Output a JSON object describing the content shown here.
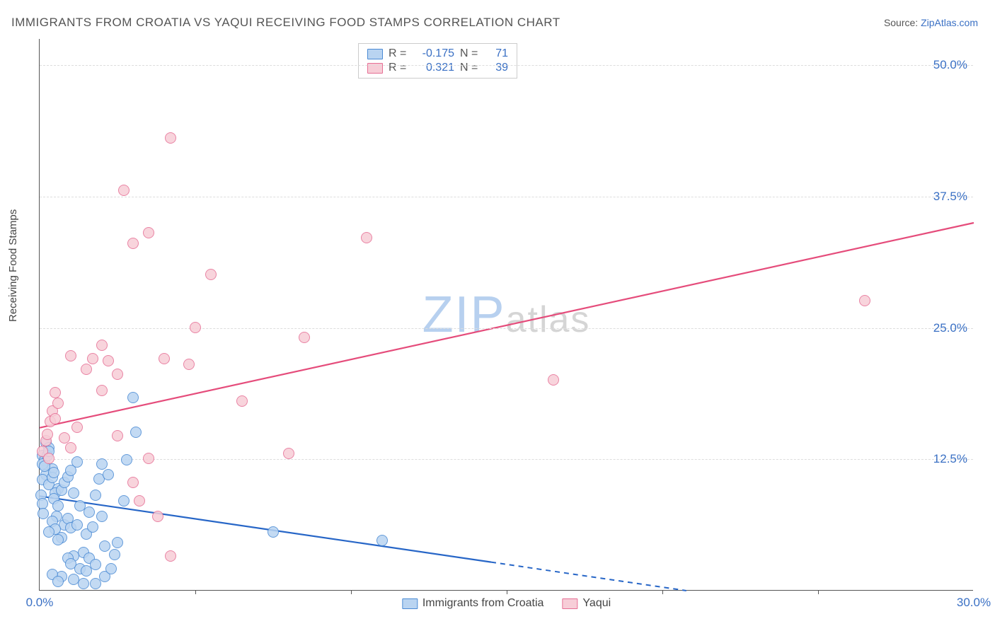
{
  "title": "IMMIGRANTS FROM CROATIA VS YAQUI RECEIVING FOOD STAMPS CORRELATION CHART",
  "source_prefix": "Source: ",
  "source_link": "ZipAtlas.com",
  "ylabel": "Receiving Food Stamps",
  "watermark_a": "ZIP",
  "watermark_b": "atlas",
  "watermark_color_a": "#b7d0ef",
  "watermark_color_b": "#d5d5d5",
  "plot": {
    "bg": "#ffffff",
    "axis_color": "#555555",
    "grid_color": "#dddddd",
    "xlim": [
      0,
      30
    ],
    "ylim": [
      0,
      52.5
    ],
    "xticks_major": [
      0,
      30
    ],
    "xticks_minor": [
      5,
      10,
      15,
      20,
      25
    ],
    "yticks": [
      12.5,
      25.0,
      37.5,
      50.0
    ],
    "xtick_labels": {
      "0": "0.0%",
      "30": "30.0%"
    },
    "ytick_labels": {
      "12.5": "12.5%",
      "25": "25.0%",
      "37.5": "37.5%",
      "50": "50.0%"
    }
  },
  "series": [
    {
      "name": "Immigrants from Croatia",
      "fill": "#b9d4f1",
      "stroke": "#4a8ad4",
      "line_color": "#2766c7",
      "R": "-0.175",
      "N": "71",
      "trend": {
        "y0": 9.0,
        "y_at_30": -4.0,
        "solid_until_x": 14.5
      },
      "points": [
        [
          0.1,
          12.8
        ],
        [
          0.15,
          12.3
        ],
        [
          0.1,
          12.0
        ],
        [
          0.2,
          14.0
        ],
        [
          0.3,
          13.5
        ],
        [
          0.25,
          12.8
        ],
        [
          0.3,
          13.2
        ],
        [
          0.4,
          11.5
        ],
        [
          0.2,
          11.0
        ],
        [
          0.15,
          11.8
        ],
        [
          0.1,
          10.5
        ],
        [
          0.3,
          10.0
        ],
        [
          0.4,
          10.7
        ],
        [
          0.45,
          11.2
        ],
        [
          0.6,
          9.6
        ],
        [
          0.5,
          9.2
        ],
        [
          0.45,
          8.7
        ],
        [
          0.7,
          9.5
        ],
        [
          0.8,
          10.2
        ],
        [
          0.9,
          10.8
        ],
        [
          1.0,
          11.4
        ],
        [
          1.2,
          12.2
        ],
        [
          1.1,
          9.2
        ],
        [
          1.3,
          8.0
        ],
        [
          0.6,
          8.0
        ],
        [
          0.55,
          7.0
        ],
        [
          0.8,
          6.2
        ],
        [
          0.9,
          6.8
        ],
        [
          1.0,
          5.9
        ],
        [
          1.2,
          6.2
        ],
        [
          0.4,
          6.5
        ],
        [
          0.5,
          5.8
        ],
        [
          0.7,
          5.0
        ],
        [
          0.3,
          5.5
        ],
        [
          0.6,
          4.8
        ],
        [
          1.5,
          5.3
        ],
        [
          1.7,
          6.0
        ],
        [
          1.6,
          7.4
        ],
        [
          1.8,
          9.0
        ],
        [
          1.9,
          10.6
        ],
        [
          2.0,
          12.0
        ],
        [
          2.2,
          11.0
        ],
        [
          2.1,
          4.2
        ],
        [
          2.4,
          3.4
        ],
        [
          1.4,
          3.6
        ],
        [
          1.1,
          3.2
        ],
        [
          0.9,
          3.0
        ],
        [
          1.6,
          3.0
        ],
        [
          1.0,
          2.5
        ],
        [
          1.3,
          2.0
        ],
        [
          1.5,
          1.8
        ],
        [
          1.8,
          2.4
        ],
        [
          1.1,
          1.0
        ],
        [
          0.7,
          1.3
        ],
        [
          0.4,
          1.5
        ],
        [
          0.6,
          0.8
        ],
        [
          1.4,
          0.6
        ],
        [
          1.8,
          0.6
        ],
        [
          2.1,
          1.3
        ],
        [
          2.3,
          2.0
        ],
        [
          2.5,
          4.5
        ],
        [
          2.0,
          7.0
        ],
        [
          2.7,
          8.5
        ],
        [
          2.8,
          12.4
        ],
        [
          3.0,
          18.3
        ],
        [
          3.1,
          15.0
        ],
        [
          7.5,
          5.5
        ],
        [
          11.0,
          4.7
        ],
        [
          0.05,
          9.0
        ],
        [
          0.08,
          8.2
        ],
        [
          0.12,
          7.3
        ]
      ]
    },
    {
      "name": "Yaqui",
      "fill": "#f7cdd7",
      "stroke": "#e66f95",
      "line_color": "#e54c7b",
      "R": "0.321",
      "N": "39",
      "trend": {
        "y0": 15.5,
        "y_at_30": 35.0,
        "solid_until_x": 30
      },
      "points": [
        [
          0.1,
          13.2
        ],
        [
          0.2,
          14.2
        ],
        [
          0.3,
          12.5
        ],
        [
          0.25,
          14.8
        ],
        [
          0.35,
          16.0
        ],
        [
          0.4,
          17.0
        ],
        [
          0.5,
          16.3
        ],
        [
          0.6,
          17.8
        ],
        [
          0.8,
          14.5
        ],
        [
          1.0,
          13.5
        ],
        [
          1.2,
          15.5
        ],
        [
          0.5,
          18.8
        ],
        [
          1.5,
          21.0
        ],
        [
          1.7,
          22.0
        ],
        [
          1.0,
          22.3
        ],
        [
          2.0,
          23.3
        ],
        [
          2.2,
          21.8
        ],
        [
          2.5,
          20.5
        ],
        [
          2.0,
          19.0
        ],
        [
          3.0,
          10.2
        ],
        [
          3.2,
          8.5
        ],
        [
          2.5,
          14.7
        ],
        [
          3.5,
          12.5
        ],
        [
          3.0,
          33.0
        ],
        [
          3.5,
          34.0
        ],
        [
          2.7,
          38.0
        ],
        [
          4.2,
          43.0
        ],
        [
          4.0,
          22.0
        ],
        [
          4.8,
          21.5
        ],
        [
          5.0,
          25.0
        ],
        [
          5.5,
          30.0
        ],
        [
          4.2,
          3.2
        ],
        [
          6.5,
          18.0
        ],
        [
          8.0,
          13.0
        ],
        [
          8.5,
          24.0
        ],
        [
          10.5,
          33.5
        ],
        [
          16.5,
          20.0
        ],
        [
          26.5,
          27.5
        ],
        [
          3.8,
          7.0
        ]
      ]
    }
  ],
  "legend_labels": {
    "R": "R =",
    "N": "N ="
  }
}
